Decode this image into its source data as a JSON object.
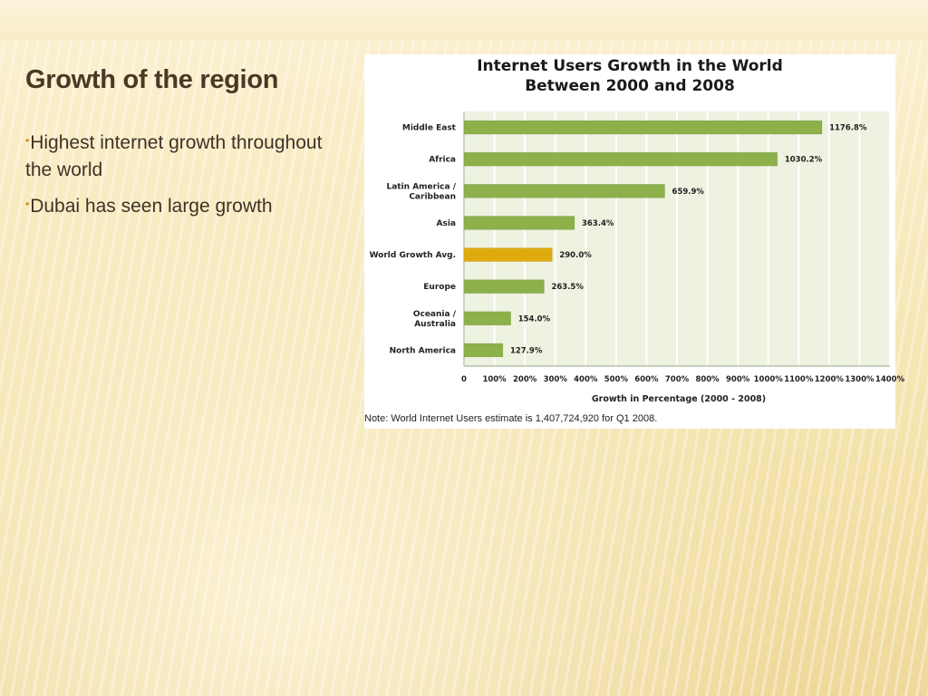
{
  "slide": {
    "title": "Growth of the region",
    "bullets": [
      "Highest internet growth throughout the world",
      "Dubai has seen large growth"
    ]
  },
  "chart_data": {
    "type": "bar",
    "orientation": "horizontal",
    "title_line1": "Internet Users Growth in the World",
    "title_line2": "Between 2000 and 2008",
    "categories": [
      [
        "Middle East"
      ],
      [
        "Africa"
      ],
      [
        "Latin America /",
        "Caribbean"
      ],
      [
        "Asia"
      ],
      [
        "World Growth Avg."
      ],
      [
        "Europe"
      ],
      [
        "Oceania  /",
        "Australia"
      ],
      [
        "North America"
      ]
    ],
    "values": [
      1176.8,
      1030.2,
      659.9,
      363.4,
      290.0,
      263.5,
      154.0,
      127.9
    ],
    "value_labels": [
      "1176.8%",
      "1030.2%",
      "659.9%",
      "363.4%",
      "290.0%",
      "263.5%",
      "154.0%",
      "127.9%"
    ],
    "highlight_index": 4,
    "xlim": [
      0,
      1400
    ],
    "xticks": [
      0,
      100,
      200,
      300,
      400,
      500,
      600,
      700,
      800,
      900,
      1000,
      1100,
      1200,
      1300,
      1400
    ],
    "xtick_labels": [
      "0",
      "100%",
      "200%",
      "300%",
      "400%",
      "500%",
      "600%",
      "700%",
      "800%",
      "900%",
      "1000%",
      "1100%",
      "1200%",
      "1300%",
      "1400%"
    ],
    "xlabel": "Growth in Percentage (2000 - 2008)",
    "ylabel": "",
    "grid": true,
    "legend": "none",
    "note": "Note: World Internet Users estimate is 1,407,724,920 for Q1 2008.",
    "colors": {
      "bar": "#8cb04a",
      "bar_highlight": "#e0aa0f",
      "plot_background": "#eef2e0",
      "grid": "#ffffff"
    }
  }
}
